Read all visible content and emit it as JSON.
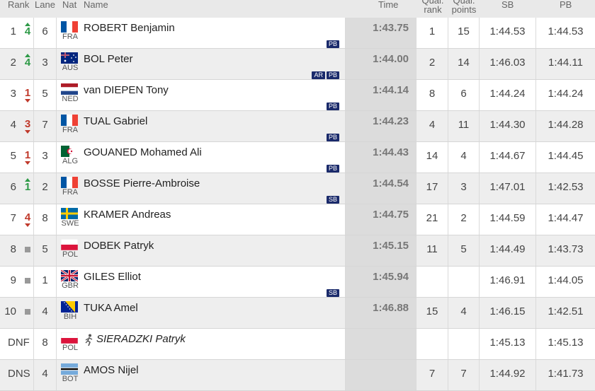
{
  "headers": {
    "rank": "Rank",
    "lane": "Lane",
    "nat": "Nat",
    "name": "Name",
    "time": "Time",
    "qual_rank": "Qual. rank",
    "qual_points": "Qual. points",
    "sb": "SB",
    "pb": "PB"
  },
  "rows": [
    {
      "rank": "1",
      "change": "up",
      "change_val": "4",
      "lane": "6",
      "nat": "FRA",
      "flag": "fra-flag-icon",
      "name": "ROBERT Benjamin",
      "badges": [
        "PB"
      ],
      "time": "1:43.75",
      "qual_rank": "1",
      "qual_points": "15",
      "sb": "1:44.53",
      "pb": "1:44.53"
    },
    {
      "rank": "2",
      "change": "up",
      "change_val": "4",
      "lane": "3",
      "nat": "AUS",
      "flag": "aus-flag-icon",
      "name": "BOL Peter",
      "badges": [
        "AR",
        "PB"
      ],
      "time": "1:44.00",
      "qual_rank": "2",
      "qual_points": "14",
      "sb": "1:46.03",
      "pb": "1:44.11"
    },
    {
      "rank": "3",
      "change": "down",
      "change_val": "1",
      "lane": "5",
      "nat": "NED",
      "flag": "ned-flag-icon",
      "name": "van DIEPEN Tony",
      "badges": [
        "PB"
      ],
      "time": "1:44.14",
      "qual_rank": "8",
      "qual_points": "6",
      "sb": "1:44.24",
      "pb": "1:44.24"
    },
    {
      "rank": "4",
      "change": "down",
      "change_val": "3",
      "lane": "7",
      "nat": "FRA",
      "flag": "fra-flag-icon",
      "name": "TUAL Gabriel",
      "badges": [
        "PB"
      ],
      "time": "1:44.23",
      "qual_rank": "4",
      "qual_points": "11",
      "sb": "1:44.30",
      "pb": "1:44.28"
    },
    {
      "rank": "5",
      "change": "down",
      "change_val": "1",
      "lane": "3",
      "nat": "ALG",
      "flag": "alg-flag-icon",
      "name": "GOUANED Mohamed Ali",
      "badges": [
        "PB"
      ],
      "time": "1:44.43",
      "qual_rank": "14",
      "qual_points": "4",
      "sb": "1:44.67",
      "pb": "1:44.45"
    },
    {
      "rank": "6",
      "change": "up",
      "change_val": "1",
      "lane": "2",
      "nat": "FRA",
      "flag": "fra-flag-icon",
      "name": "BOSSE Pierre-Ambroise",
      "badges": [
        "SB"
      ],
      "time": "1:44.54",
      "qual_rank": "17",
      "qual_points": "3",
      "sb": "1:47.01",
      "pb": "1:42.53"
    },
    {
      "rank": "7",
      "change": "down",
      "change_val": "4",
      "lane": "8",
      "nat": "SWE",
      "flag": "swe-flag-icon",
      "name": "KRAMER Andreas",
      "badges": [],
      "time": "1:44.75",
      "qual_rank": "21",
      "qual_points": "2",
      "sb": "1:44.59",
      "pb": "1:44.47"
    },
    {
      "rank": "8",
      "change": "same",
      "change_val": "",
      "lane": "5",
      "nat": "POL",
      "flag": "pol-flag-icon",
      "name": "DOBEK Patryk",
      "badges": [],
      "time": "1:45.15",
      "qual_rank": "11",
      "qual_points": "5",
      "sb": "1:44.49",
      "pb": "1:43.73"
    },
    {
      "rank": "9",
      "change": "same",
      "change_val": "",
      "lane": "1",
      "nat": "GBR",
      "flag": "gbr-flag-icon",
      "name": "GILES Elliot",
      "badges": [
        "SB"
      ],
      "time": "1:45.94",
      "qual_rank": "",
      "qual_points": "",
      "sb": "1:46.91",
      "pb": "1:44.05"
    },
    {
      "rank": "10",
      "change": "same",
      "change_val": "",
      "lane": "4",
      "nat": "BIH",
      "flag": "bih-flag-icon",
      "name": "TUKA Amel",
      "badges": [],
      "time": "1:46.88",
      "qual_rank": "15",
      "qual_points": "4",
      "sb": "1:46.15",
      "pb": "1:42.51"
    },
    {
      "rank": "DNF",
      "change": "none",
      "change_val": "",
      "lane": "8",
      "nat": "POL",
      "flag": "pol-flag-icon",
      "name": "SIERADZKI Patryk",
      "badges": [],
      "time": "",
      "qual_rank": "",
      "qual_points": "",
      "sb": "1:45.13",
      "pb": "1:45.13",
      "status_icon": "runner-icon"
    },
    {
      "rank": "DNS",
      "change": "none",
      "change_val": "",
      "lane": "4",
      "nat": "BOT",
      "flag": "bot-flag-icon",
      "name": "AMOS Nijel",
      "badges": [],
      "time": "",
      "qual_rank": "7",
      "qual_points": "7",
      "sb": "1:44.92",
      "pb": "1:41.73"
    }
  ],
  "colors": {
    "up": "#2e9a47",
    "down": "#c0392b",
    "badge": "#1a2a6b",
    "time_bg": "#dcdcdc",
    "header_bg": "#e9e9e9"
  }
}
